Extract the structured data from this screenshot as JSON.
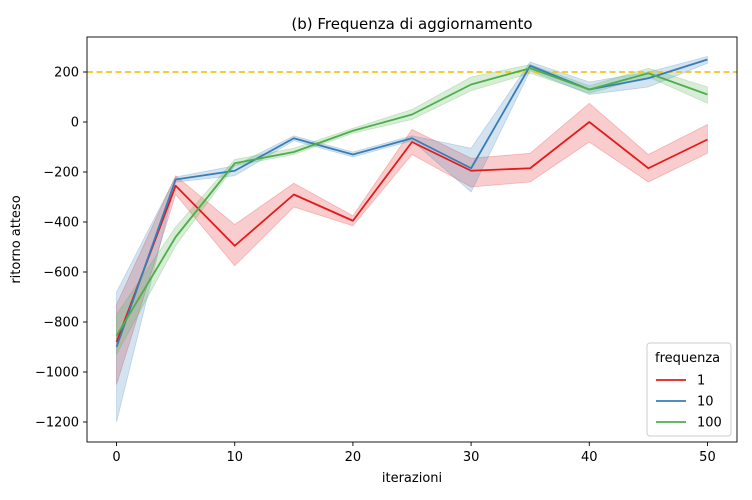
{
  "chart_data": {
    "type": "line",
    "title": "(b) Frequenza di aggiornamento",
    "xlabel": "iterazioni",
    "ylabel": "ritorno atteso",
    "xlim": [
      -2.5,
      52.5
    ],
    "ylim": [
      -1280,
      340
    ],
    "xticks": [
      0,
      10,
      20,
      30,
      40,
      50
    ],
    "yticks": [
      -1200,
      -1000,
      -800,
      -600,
      -400,
      -200,
      0,
      200
    ],
    "xtick_labels": [
      "0",
      "10",
      "20",
      "30",
      "40",
      "50"
    ],
    "ytick_labels": [
      "−1200",
      "−1000",
      "−800",
      "−600",
      "−400",
      "−200",
      "0",
      "200"
    ],
    "reference_line": {
      "y": 200,
      "color": "#f5c518",
      "style": "dashed"
    },
    "grid": false,
    "legend": {
      "title": "frequenza",
      "placement": "lower-right"
    },
    "x": [
      0,
      5,
      10,
      15,
      20,
      25,
      30,
      35,
      40,
      45,
      50
    ],
    "series": [
      {
        "name": "1",
        "color": "#e41a1c",
        "values": [
          -880,
          -255,
          -495,
          -290,
          -395,
          -80,
          -195,
          -185,
          0,
          -185,
          -70
        ],
        "lower": [
          -1050,
          -290,
          -575,
          -340,
          -415,
          -130,
          -260,
          -240,
          -80,
          -240,
          -125
        ],
        "upper": [
          -730,
          -215,
          -410,
          -245,
          -375,
          -30,
          -145,
          -125,
          75,
          -130,
          -10
        ]
      },
      {
        "name": "10",
        "color": "#377eb8",
        "values": [
          -900,
          -230,
          -195,
          -65,
          -130,
          -65,
          -185,
          225,
          130,
          175,
          250
        ],
        "lower": [
          -1200,
          -240,
          -215,
          -75,
          -140,
          -75,
          -280,
          205,
          110,
          140,
          235
        ],
        "upper": [
          -680,
          -220,
          -175,
          -55,
          -120,
          -55,
          -105,
          240,
          160,
          200,
          262
        ]
      },
      {
        "name": "100",
        "color": "#4daf4a",
        "values": [
          -855,
          -460,
          -165,
          -120,
          -35,
          30,
          150,
          215,
          130,
          195,
          110
        ],
        "lower": [
          -930,
          -495,
          -175,
          -130,
          -45,
          10,
          125,
          195,
          115,
          180,
          75
        ],
        "upper": [
          -770,
          -420,
          -150,
          -105,
          -25,
          50,
          180,
          230,
          145,
          215,
          140
        ]
      }
    ]
  }
}
